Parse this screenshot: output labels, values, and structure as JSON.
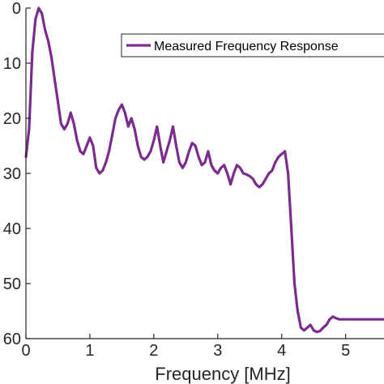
{
  "chart_data": {
    "type": "line",
    "xlabel": "Frequency [MHz]",
    "ylabel": "",
    "xlim": [
      0,
      5.6
    ],
    "ylim": [
      0,
      60
    ],
    "y_inverted": true,
    "x_ticks": [
      "0",
      "1",
      "2",
      "3",
      "4",
      "5"
    ],
    "y_ticks": [
      "0",
      "10",
      "20",
      "30",
      "40",
      "50",
      "60"
    ],
    "grid": false,
    "legend_position": "top-right",
    "colors": {
      "series": "#7b2a8e",
      "axis": "#262626"
    },
    "series": [
      {
        "name": "Measured Frequency Response",
        "x": [
          0,
          0.05,
          0.1,
          0.15,
          0.2,
          0.25,
          0.3,
          0.35,
          0.4,
          0.45,
          0.5,
          0.55,
          0.6,
          0.65,
          0.7,
          0.75,
          0.8,
          0.85,
          0.9,
          0.95,
          1.0,
          1.05,
          1.1,
          1.15,
          1.2,
          1.25,
          1.3,
          1.35,
          1.4,
          1.45,
          1.5,
          1.55,
          1.6,
          1.65,
          1.7,
          1.75,
          1.8,
          1.85,
          1.9,
          1.95,
          2.0,
          2.05,
          2.1,
          2.15,
          2.2,
          2.25,
          2.3,
          2.35,
          2.4,
          2.45,
          2.5,
          2.55,
          2.6,
          2.65,
          2.7,
          2.75,
          2.8,
          2.85,
          2.9,
          2.95,
          3.0,
          3.05,
          3.1,
          3.15,
          3.2,
          3.25,
          3.3,
          3.35,
          3.4,
          3.45,
          3.5,
          3.55,
          3.6,
          3.65,
          3.7,
          3.75,
          3.8,
          3.85,
          3.9,
          3.95,
          4.0,
          4.05,
          4.1,
          4.15,
          4.2,
          4.25,
          4.3,
          4.35,
          4.4,
          4.45,
          4.5,
          4.55,
          4.6,
          4.65,
          4.7,
          4.75,
          4.8,
          4.85,
          4.9,
          4.95,
          5.0,
          5.05,
          5.1,
          5.15,
          5.2,
          5.25,
          5.3,
          5.35,
          5.4,
          5.45,
          5.5,
          5.55,
          5.6
        ],
        "y": [
          27,
          22,
          8,
          2,
          0,
          1,
          4,
          6,
          9,
          13,
          17,
          21,
          22,
          21,
          19,
          21,
          24,
          26,
          26.5,
          25,
          23.5,
          25,
          29,
          30,
          29.5,
          28,
          26,
          23,
          20,
          18.5,
          17.5,
          19,
          21.5,
          20,
          22,
          25,
          27,
          27.5,
          27,
          26,
          24,
          21.5,
          25,
          28,
          26,
          24,
          21.5,
          25,
          28,
          29,
          28,
          26,
          24.5,
          25,
          27,
          28.5,
          28,
          26,
          28.5,
          29.5,
          30,
          29,
          28.5,
          30,
          32,
          30,
          28.5,
          29,
          30,
          30.2,
          30.5,
          31,
          32,
          32.5,
          32,
          31,
          30,
          29.5,
          28,
          27,
          26.5,
          26,
          30,
          40,
          50,
          55,
          58,
          58.5,
          58,
          57.5,
          58.5,
          58.8,
          58.6,
          58,
          57.5,
          56.5,
          56,
          56.3,
          56.5,
          56.5,
          56.5,
          56.5,
          56.5,
          56.5,
          56.5,
          56.5,
          56.5,
          56.5,
          56.5,
          56.5,
          56.5,
          56.5,
          56.5
        ]
      }
    ]
  }
}
